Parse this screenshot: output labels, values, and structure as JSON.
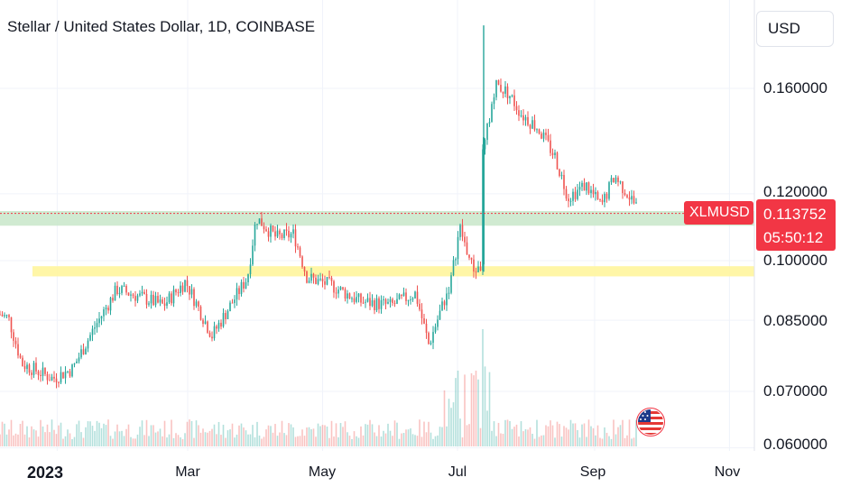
{
  "header": {
    "title": "Stellar / United States Dollar, 1D, COINBASE",
    "currency": "USD"
  },
  "price_scale": {
    "ticks": [
      "0.160000",
      "0.120000",
      "0.100000",
      "0.085000",
      "0.070000",
      "0.060000"
    ]
  },
  "time_scale": {
    "ticks": [
      "2023",
      "Mar",
      "May",
      "Jul",
      "Sep",
      "Nov"
    ]
  },
  "last_price": {
    "symbol": "XLMUSD",
    "value": "0.113752",
    "countdown": "05:50:12"
  },
  "colors": {
    "up": "#26a69a",
    "down": "#ef5350",
    "resistance_zone": "#c8e6c9",
    "support_zone": "#fff59d",
    "price_line": "#f23645"
  },
  "chart_data": {
    "type": "candlestick",
    "title": "Stellar / United States Dollar, 1D, COINBASE",
    "symbol": "XLMUSD",
    "y_scale": "log",
    "ylim": [
      0.06,
      0.2
    ],
    "x_ticks": [
      "2023",
      "Mar",
      "May",
      "Jul",
      "Sep",
      "Nov"
    ],
    "y_ticks": [
      0.16,
      0.12,
      0.1,
      0.085,
      0.07,
      0.06
    ],
    "grid": true,
    "zones": [
      {
        "low": 0.11,
        "high": 0.1145,
        "color": "green"
      },
      {
        "low": 0.0958,
        "high": 0.0985,
        "color": "yellow"
      }
    ],
    "last_price": 0.113752,
    "path_points": [
      {
        "date": "2022-12-01",
        "close": 0.0875
      },
      {
        "date": "2022-12-10",
        "close": 0.0855
      },
      {
        "date": "2022-12-16",
        "close": 0.0755
      },
      {
        "date": "2022-12-30",
        "close": 0.0725
      },
      {
        "date": "2023-01-08",
        "close": 0.0745
      },
      {
        "date": "2023-01-18",
        "close": 0.0835
      },
      {
        "date": "2023-01-28",
        "close": 0.0925
      },
      {
        "date": "2023-02-08",
        "close": 0.0905
      },
      {
        "date": "2023-02-18",
        "close": 0.0885
      },
      {
        "date": "2023-02-28",
        "close": 0.0945
      },
      {
        "date": "2023-03-12",
        "close": 0.0815
      },
      {
        "date": "2023-03-28",
        "close": 0.0955
      },
      {
        "date": "2023-04-01",
        "close": 0.1125
      },
      {
        "date": "2023-04-10",
        "close": 0.1065
      },
      {
        "date": "2023-04-18",
        "close": 0.1075
      },
      {
        "date": "2023-04-24",
        "close": 0.0955
      },
      {
        "date": "2023-05-05",
        "close": 0.0935
      },
      {
        "date": "2023-05-18",
        "close": 0.0895
      },
      {
        "date": "2023-06-01",
        "close": 0.0885
      },
      {
        "date": "2023-06-12",
        "close": 0.0915
      },
      {
        "date": "2023-06-18",
        "close": 0.0795
      },
      {
        "date": "2023-06-28",
        "close": 0.0945
      },
      {
        "date": "2023-07-02",
        "close": 0.1095
      },
      {
        "date": "2023-07-08",
        "close": 0.0975
      },
      {
        "date": "2023-07-12",
        "close": 0.0985
      },
      {
        "date": "2023-07-13",
        "close": 0.1355
      },
      {
        "date": "2023-07-18",
        "close": 0.162
      },
      {
        "date": "2023-07-24",
        "close": 0.158
      },
      {
        "date": "2023-07-30",
        "close": 0.149
      },
      {
        "date": "2023-08-06",
        "close": 0.144
      },
      {
        "date": "2023-08-14",
        "close": 0.133
      },
      {
        "date": "2023-08-20",
        "close": 0.119
      },
      {
        "date": "2023-08-28",
        "close": 0.123
      },
      {
        "date": "2023-09-04",
        "close": 0.116
      },
      {
        "date": "2023-09-10",
        "close": 0.126
      },
      {
        "date": "2023-09-16",
        "close": 0.12
      },
      {
        "date": "2023-09-22",
        "close": 0.1137
      }
    ]
  }
}
